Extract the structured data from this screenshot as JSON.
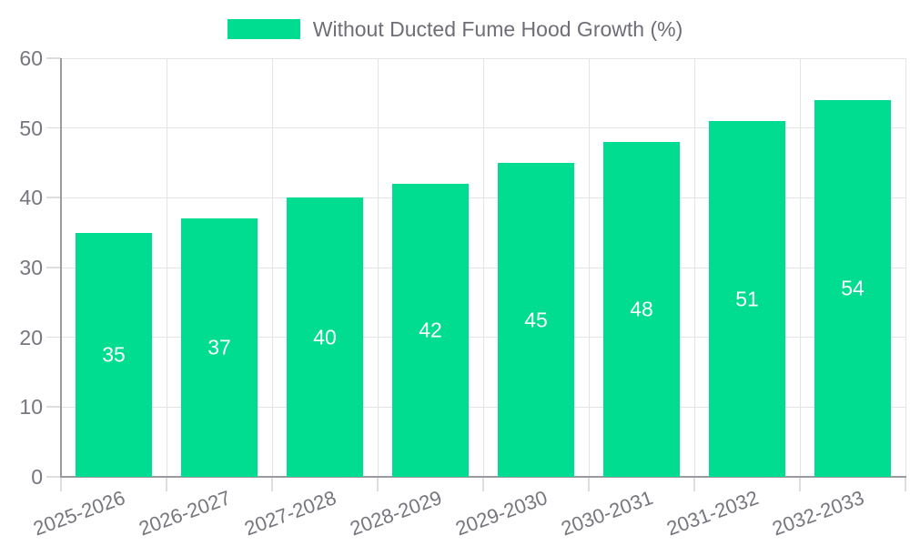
{
  "legend": {
    "position": "top",
    "items": [
      {
        "label": "Without Ducted Fume Hood Growth (%)",
        "color": "#00DC90"
      }
    ]
  },
  "chart_data": {
    "type": "bar",
    "title": "Without Ducted Fume Hood Growth (%)",
    "categories": [
      "2025-2026",
      "2026-2027",
      "2027-2028",
      "2028-2029",
      "2029-2030",
      "2030-2031",
      "2031-2032",
      "2032-2033"
    ],
    "series": [
      {
        "name": "Without Ducted Fume Hood Growth (%)",
        "color": "#00DC90",
        "values": [
          35,
          37,
          40,
          42,
          45,
          48,
          51,
          54
        ]
      }
    ],
    "xlabel": "",
    "ylabel": "",
    "ylim": [
      0,
      60
    ],
    "yticks": [
      0,
      10,
      20,
      30,
      40,
      50,
      60
    ],
    "grid": true,
    "legend_position": "top",
    "value_labels": "inside-center",
    "value_label_color": "#ffffff",
    "axis_text_color": "#76767e",
    "grid_color": "#e4e4e4",
    "tick_color": "#dedede",
    "axis_line_color": "#9b9b9f",
    "x_label_rotation_deg": -20
  }
}
